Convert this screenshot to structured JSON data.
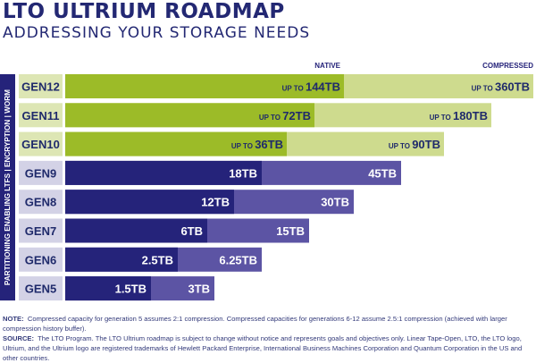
{
  "header": {
    "title": "LTO ULTRIUM ROADMAP",
    "subtitle": "ADDRESSING YOUR STORAGE NEEDS"
  },
  "chart_data": {
    "type": "bar",
    "orientation": "horizontal",
    "stacked_overlay": true,
    "series_labels": {
      "native": "NATIVE",
      "compressed": "COMPRESSED"
    },
    "side_label": "PARTITIONING ENABLING LTFS  |  ENCRYPTION  |  WORM",
    "categories": [
      "GEN12",
      "GEN11",
      "GEN10",
      "GEN9",
      "GEN8",
      "GEN7",
      "GEN6",
      "GEN5"
    ],
    "series": [
      {
        "name": "NATIVE",
        "values": [
          144,
          72,
          36,
          18,
          12,
          6,
          2.5,
          1.5
        ],
        "labels": [
          "144TB",
          "72TB",
          "36TB",
          "18TB",
          "12TB",
          "6TB",
          "2.5TB",
          "1.5TB"
        ]
      },
      {
        "name": "COMPRESSED",
        "values": [
          360,
          180,
          90,
          45,
          30,
          15,
          6.25,
          3
        ],
        "labels": [
          "360TB",
          "180TB",
          "90TB",
          "45TB",
          "30TB",
          "15TB",
          "6.25TB",
          "3TB"
        ]
      }
    ],
    "prefix_text": "UP TO",
    "prefix_rows": [
      "GEN12",
      "GEN11",
      "GEN10"
    ],
    "colors": {
      "future_native": "#9cbb28",
      "future_compressed": "#cedb8e",
      "current_native": "#25237a",
      "current_compressed": "#5c54a4",
      "gen_label_future_bg": "#dde6b4",
      "gen_label_current_bg": "#d3d2e6",
      "side_bar": "#25237a"
    }
  },
  "notes": {
    "note_label": "NOTE:",
    "note_text": "Compressed capacity for generation 5 assumes 2:1 compression. Compressed capacities for generations 6-12 assume 2.5:1 compression (achieved with larger compression history buffer).",
    "source_label": "SOURCE:",
    "source_text": "The LTO Program. The LTO Ultrium roadmap is subject to change without notice and represents goals and objectives only. Linear Tape-Open, LTO, the LTO logo, Ultrium, and the Ultrium logo are registered trademarks of Hewlett Packard Enterprise, International Business Machines Corporation and Quantum Corporation in the US and other countries."
  }
}
